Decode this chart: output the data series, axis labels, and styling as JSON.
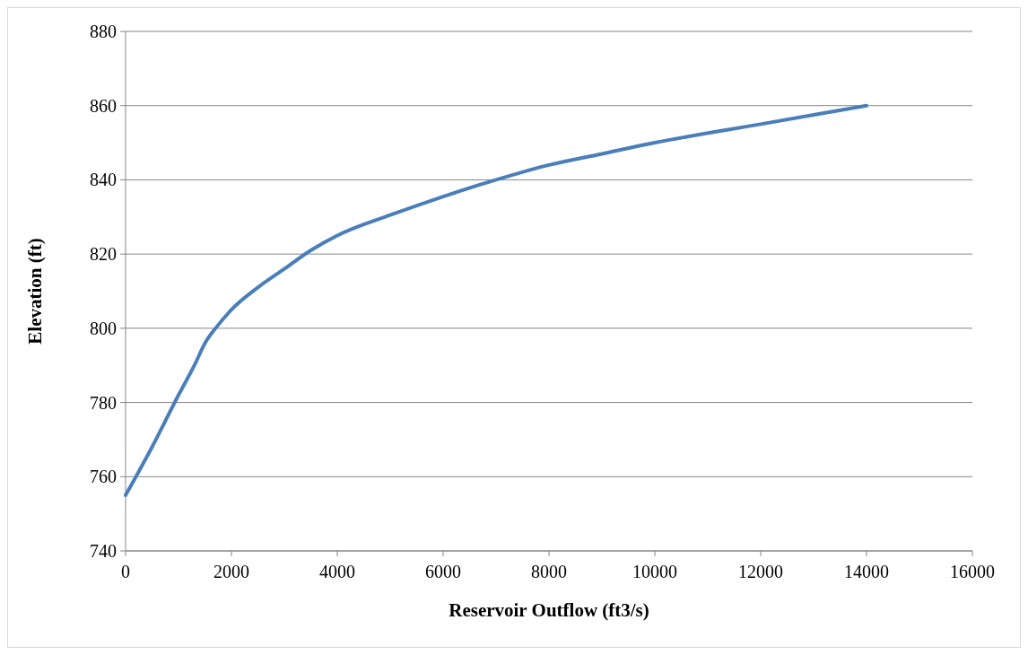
{
  "chart_data": {
    "type": "line",
    "xlabel": "Reservoir Outflow (ft3/s)",
    "ylabel": "Elevation (ft)",
    "x": [
      0,
      500,
      1000,
      1300,
      1500,
      1700,
      2000,
      2500,
      3000,
      3500,
      4000,
      5000,
      6000,
      7000,
      8000,
      9000,
      10000,
      12000,
      14000
    ],
    "series": [
      {
        "color": "#4a7ebb",
        "values": [
          755,
          768,
          782,
          790,
          796,
          800,
          805,
          811,
          816,
          821,
          825,
          830.5,
          835.5,
          840,
          844,
          847,
          850,
          855,
          860
        ]
      }
    ],
    "xlim": [
      0,
      16000
    ],
    "xticks": [
      0,
      2000,
      4000,
      6000,
      8000,
      10000,
      12000,
      14000,
      16000
    ],
    "ylim": [
      740,
      880
    ],
    "yticks": [
      740,
      760,
      780,
      800,
      820,
      840,
      860,
      880
    ],
    "grid": "y",
    "marker": "none",
    "line_style": "solid"
  }
}
